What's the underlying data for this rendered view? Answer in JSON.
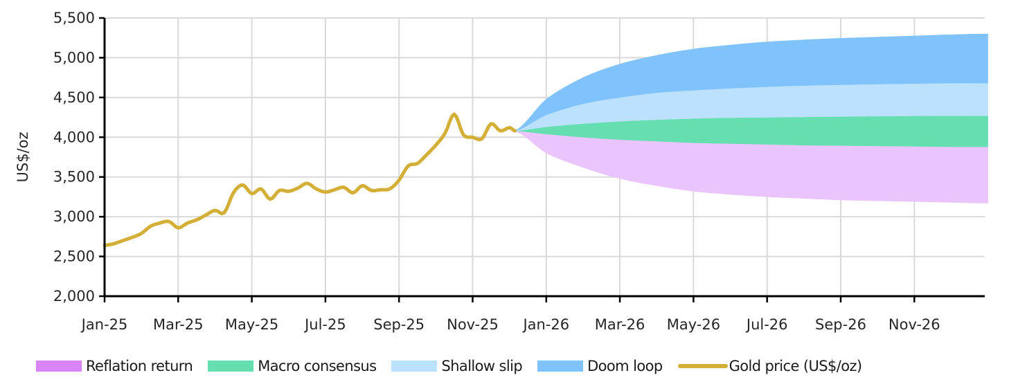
{
  "chart_data": {
    "type": "area",
    "title": "",
    "xlabel": "",
    "ylabel": "US$/oz",
    "ylim": [
      2000,
      5500
    ],
    "yticks": [
      2000,
      2500,
      3000,
      3500,
      4000,
      4500,
      5000,
      5500
    ],
    "ytick_labels": [
      "2,000",
      "2,500",
      "3,000",
      "3,500",
      "4,000",
      "4,500",
      "5,000",
      "5,500"
    ],
    "xtick_labels": [
      "Jan-25",
      "Mar-25",
      "May-25",
      "Jul-25",
      "Sep-25",
      "Nov-25",
      "Jan-26",
      "Mar-26",
      "May-26",
      "Jul-26",
      "Sep-26",
      "Nov-26"
    ],
    "grid": true,
    "legend_position": "bottom",
    "colors": {
      "reflation_return": "#E9C4FD",
      "macro_consensus": "#66DFB0",
      "shallow_slip": "#BBE1FD",
      "doom_loop": "#80C3FC",
      "gold_price": "#D4AF37",
      "legend_reflation_return": "#D985F7",
      "grid": "#D9D9D9",
      "axis": "#000000"
    },
    "series": [
      {
        "name": "Gold price (US$/oz)",
        "kind": "line",
        "x_months": [
          0.0,
          0.25,
          0.5,
          0.75,
          1.0,
          1.25,
          1.5,
          1.75,
          2.0,
          2.25,
          2.5,
          2.75,
          3.0,
          3.25,
          3.5,
          3.75,
          4.0,
          4.25,
          4.5,
          4.75,
          5.0,
          5.25,
          5.5,
          5.75,
          6.0,
          6.25,
          6.5,
          6.75,
          7.0,
          7.25,
          7.5,
          7.75,
          8.0,
          8.25,
          8.5,
          8.75,
          9.0,
          9.25,
          9.5,
          9.75,
          10.0,
          10.25,
          10.5,
          10.75,
          11.0,
          11.15
        ],
        "values": [
          2640,
          2660,
          2700,
          2740,
          2790,
          2880,
          2920,
          2940,
          2860,
          2920,
          2960,
          3020,
          3080,
          3050,
          3300,
          3400,
          3290,
          3350,
          3220,
          3330,
          3320,
          3360,
          3420,
          3350,
          3310,
          3340,
          3370,
          3300,
          3390,
          3330,
          3340,
          3350,
          3460,
          3640,
          3670,
          3780,
          3900,
          4050,
          4290,
          4030,
          4000,
          3980,
          4170,
          4080,
          4120,
          4080
        ]
      },
      {
        "name": "Reflation return",
        "kind": "band",
        "x_months": [
          11.15,
          12,
          13,
          14,
          15,
          16,
          17,
          18,
          19,
          20,
          21,
          22,
          23,
          24
        ],
        "lower": [
          4080,
          3800,
          3620,
          3480,
          3390,
          3320,
          3280,
          3250,
          3230,
          3210,
          3200,
          3190,
          3180,
          3170
        ],
        "upper": [
          4080,
          4040,
          4000,
          3970,
          3950,
          3930,
          3920,
          3910,
          3900,
          3895,
          3890,
          3885,
          3880,
          3880
        ]
      },
      {
        "name": "Macro consensus",
        "kind": "band",
        "x_months": [
          11.15,
          12,
          13,
          14,
          15,
          16,
          17,
          18,
          19,
          20,
          21,
          22,
          23,
          24
        ],
        "lower": [
          4080,
          4040,
          4000,
          3970,
          3950,
          3930,
          3920,
          3910,
          3900,
          3895,
          3890,
          3885,
          3880,
          3880
        ],
        "upper": [
          4080,
          4130,
          4170,
          4200,
          4220,
          4235,
          4245,
          4250,
          4255,
          4260,
          4265,
          4268,
          4270,
          4270
        ]
      },
      {
        "name": "Shallow slip",
        "kind": "band",
        "x_months": [
          11.15,
          12,
          13,
          14,
          15,
          16,
          17,
          18,
          19,
          20,
          21,
          22,
          23,
          24
        ],
        "lower": [
          4080,
          4130,
          4170,
          4200,
          4220,
          4235,
          4245,
          4250,
          4255,
          4260,
          4265,
          4268,
          4270,
          4270
        ],
        "upper": [
          4080,
          4280,
          4420,
          4500,
          4560,
          4590,
          4615,
          4635,
          4650,
          4660,
          4668,
          4675,
          4680,
          4680
        ]
      },
      {
        "name": "Doom loop",
        "kind": "band",
        "x_months": [
          11.15,
          12,
          13,
          14,
          15,
          16,
          17,
          18,
          19,
          20,
          21,
          22,
          23,
          24
        ],
        "lower": [
          4080,
          4280,
          4420,
          4500,
          4560,
          4590,
          4615,
          4635,
          4650,
          4660,
          4668,
          4675,
          4680,
          4680
        ],
        "upper": [
          4080,
          4480,
          4750,
          4920,
          5030,
          5110,
          5160,
          5200,
          5225,
          5245,
          5260,
          5275,
          5290,
          5300
        ]
      }
    ]
  },
  "axes": {
    "y_title": "US$/oz"
  },
  "legend": {
    "items": [
      {
        "label": "Reflation return",
        "kind": "swatch",
        "color": "#D985F7"
      },
      {
        "label": "Macro consensus",
        "kind": "swatch",
        "color": "#66DFB0"
      },
      {
        "label": "Shallow slip",
        "kind": "swatch",
        "color": "#BBE1FD"
      },
      {
        "label": "Doom loop",
        "kind": "swatch",
        "color": "#80C3FC"
      },
      {
        "label": "Gold price (US$/oz)",
        "kind": "line",
        "color": "#D4AF37"
      }
    ]
  }
}
